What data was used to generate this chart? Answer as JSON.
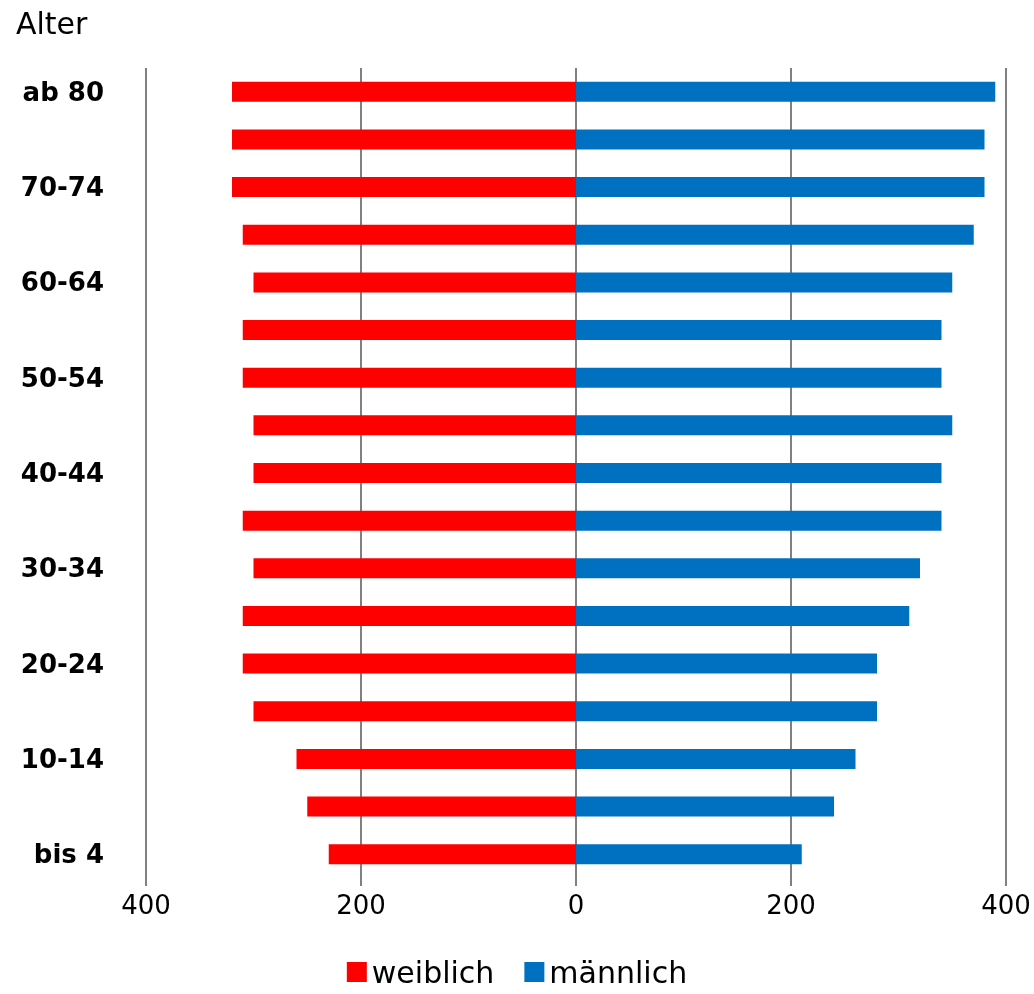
{
  "chart_data": {
    "type": "bar",
    "orientation": "horizontal",
    "ylabel": "Alter",
    "categories": [
      "ab 80",
      null,
      "70-74",
      null,
      "60-64",
      null,
      "50-54",
      null,
      "40-44",
      null,
      "30-34",
      null,
      "20-24",
      null,
      "10-14",
      null,
      "bis 4"
    ],
    "series": [
      {
        "name": "weiblich",
        "color": "#ff0000",
        "values": [
          -320,
          -320,
          -320,
          -310,
          -300,
          -310,
          -310,
          -300,
          -300,
          -310,
          -300,
          -310,
          -310,
          -300,
          -260,
          -250,
          -230
        ]
      },
      {
        "name": "männlich",
        "color": "#0070c0",
        "values": [
          390,
          380,
          380,
          370,
          350,
          340,
          340,
          350,
          340,
          340,
          320,
          310,
          280,
          280,
          260,
          240,
          210
        ]
      }
    ],
    "xlim": [
      -400,
      400
    ],
    "xticks": [
      {
        "value": -400,
        "label": "400"
      },
      {
        "value": -200,
        "label": "200"
      },
      0,
      200,
      400
    ],
    "grid": "x",
    "legend": "bottom",
    "stacked": true
  }
}
